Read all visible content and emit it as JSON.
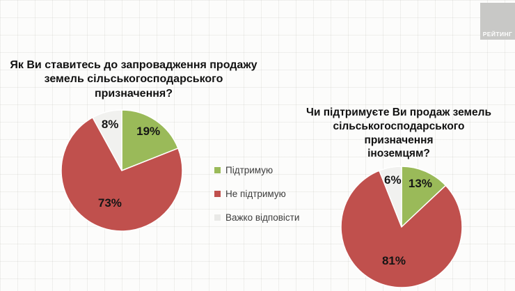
{
  "logo": {
    "text": "РЕЙТИНГ",
    "bg_color": "#c8c8c6",
    "text_color": "#ffffff"
  },
  "legend": {
    "items": [
      {
        "name": "support",
        "label": "Підтримую",
        "color": "#9aba59"
      },
      {
        "name": "oppose",
        "label": "Не підтримую",
        "color": "#c0504d"
      },
      {
        "name": "hard-to-say",
        "label": "Важко відповісти",
        "color": "#e9e9e7"
      }
    ]
  },
  "chart_data": [
    {
      "type": "pie",
      "title": "Як Ви ставитесь до запровадження продажу\nземель сільськогосподарського призначення?",
      "labels": [
        "Підтримую",
        "Не підтримую",
        "Важко відповісти"
      ],
      "values": [
        19,
        73,
        8
      ],
      "value_labels": [
        "19%",
        "73%",
        "8%"
      ],
      "colors": [
        "#9aba59",
        "#c0504d",
        "#f1f1ef"
      ],
      "start_angle_deg": 0,
      "direction": "clockwise",
      "legend_position": "right-of-chart"
    },
    {
      "type": "pie",
      "title": "Чи підтримуєте Ви продаж земель\nсільськогосподарського призначення\nіноземцям?",
      "labels": [
        "Підтримую",
        "Не підтримую",
        "Важко відповісти"
      ],
      "values": [
        13,
        81,
        6
      ],
      "value_labels": [
        "13%",
        "81%",
        "6%"
      ],
      "colors": [
        "#9aba59",
        "#c0504d",
        "#f1f1ef"
      ],
      "start_angle_deg": 0,
      "direction": "clockwise",
      "legend_position": "shared"
    }
  ]
}
